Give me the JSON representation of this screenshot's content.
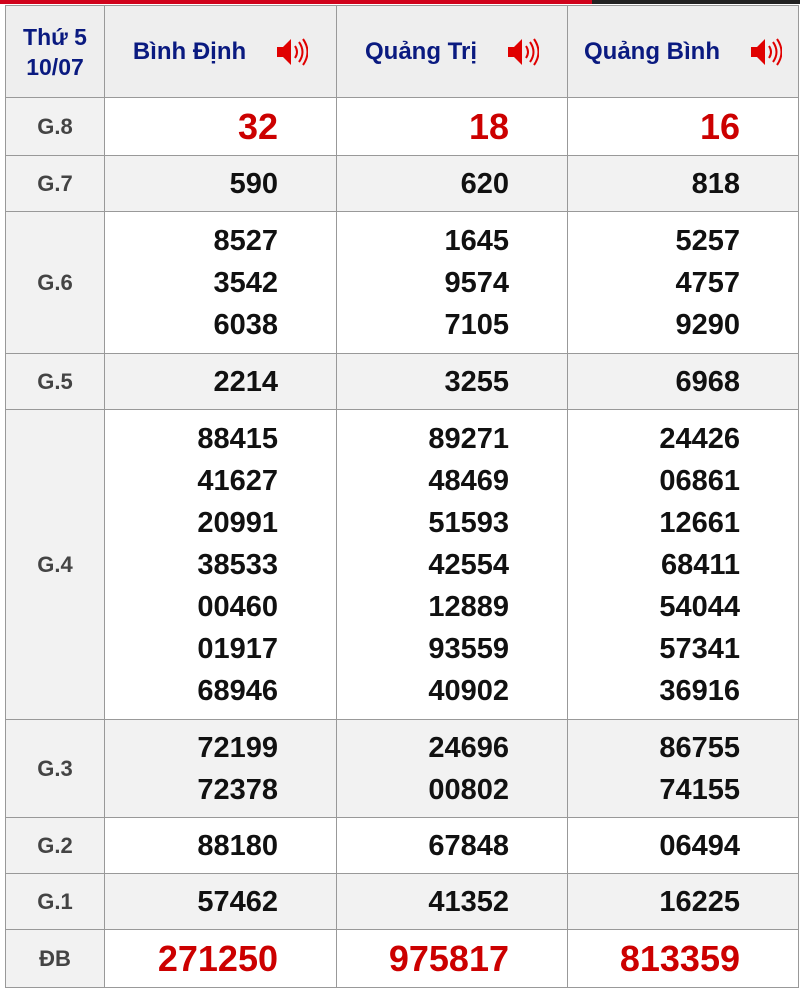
{
  "header": {
    "day": "Thứ 5",
    "date": "10/07",
    "provinces": [
      "Bình Định",
      "Quảng Trị",
      "Quảng Bình"
    ],
    "speaker_icon": "speaker-icon",
    "speaker_color": "#e00000"
  },
  "colors": {
    "title": "#0a1a80",
    "highlight": "#cc0000",
    "topbar": "#d0021b"
  },
  "rows": [
    {
      "label": "G.8",
      "values": [
        [
          "32"
        ],
        [
          "18"
        ],
        [
          "16"
        ]
      ]
    },
    {
      "label": "G.7",
      "values": [
        [
          "590"
        ],
        [
          "620"
        ],
        [
          "818"
        ]
      ]
    },
    {
      "label": "G.6",
      "values": [
        [
          "8527",
          "3542",
          "6038"
        ],
        [
          "1645",
          "9574",
          "7105"
        ],
        [
          "5257",
          "4757",
          "9290"
        ]
      ]
    },
    {
      "label": "G.5",
      "values": [
        [
          "2214"
        ],
        [
          "3255"
        ],
        [
          "6968"
        ]
      ]
    },
    {
      "label": "G.4",
      "values": [
        [
          "88415",
          "41627",
          "20991",
          "38533",
          "00460",
          "01917",
          "68946"
        ],
        [
          "89271",
          "48469",
          "51593",
          "42554",
          "12889",
          "93559",
          "40902"
        ],
        [
          "24426",
          "06861",
          "12661",
          "68411",
          "54044",
          "57341",
          "36916"
        ]
      ]
    },
    {
      "label": "G.3",
      "values": [
        [
          "72199",
          "72378"
        ],
        [
          "24696",
          "00802"
        ],
        [
          "86755",
          "74155"
        ]
      ]
    },
    {
      "label": "G.2",
      "values": [
        [
          "88180"
        ],
        [
          "67848"
        ],
        [
          "06494"
        ]
      ]
    },
    {
      "label": "G.1",
      "values": [
        [
          "57462"
        ],
        [
          "41352"
        ],
        [
          "16225"
        ]
      ]
    },
    {
      "label": "ĐB",
      "values": [
        [
          "271250"
        ],
        [
          "975817"
        ],
        [
          "813359"
        ]
      ]
    }
  ]
}
